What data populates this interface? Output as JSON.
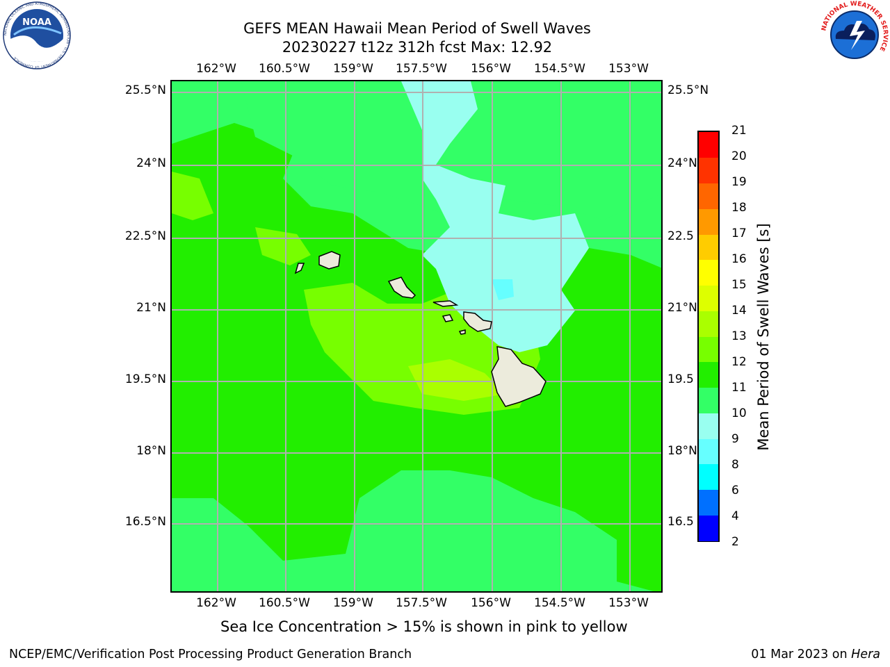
{
  "title_line1": "GEFS MEAN Hawaii Mean Period of Swell Waves",
  "title_line2": "20230227 t12z 312h fcst   Max: 12.92",
  "lon_labels": [
    "162°W",
    "160.5°W",
    "159°W",
    "157.5°W",
    "156°W",
    "154.5°W",
    "153°W"
  ],
  "lat_labels": [
    "25.5°N",
    "24°N",
    "22.5°N",
    "21°N",
    "19.5°N",
    "18°N",
    "16.5°N"
  ],
  "lat_labels_right": [
    "25.5°N",
    "24°N",
    "22.5",
    "21°N",
    "19.5",
    "18°N",
    "16.5"
  ],
  "colorbar": {
    "title": "Mean Period of Swell Waves [s]",
    "labels": [
      "2",
      "4",
      "6",
      "8",
      "9",
      "10",
      "11",
      "12",
      "13",
      "14",
      "15",
      "16",
      "17",
      "18",
      "19",
      "20",
      "21"
    ],
    "colors": [
      "#0000ff",
      "#0070ff",
      "#00ffff",
      "#66ffff",
      "#99fff0",
      "#33ff66",
      "#22ee00",
      "#77ff00",
      "#aaff00",
      "#ddff00",
      "#ffff00",
      "#ffcc00",
      "#ff9900",
      "#ff6600",
      "#ff3300",
      "#ff0000"
    ]
  },
  "map_colors": {
    "ocean_base": "#33ff66",
    "period_11": "#22ee00",
    "period_12": "#77ff00",
    "period_13": "#aaff00",
    "period_9": "#99fff0",
    "period_8": "#66ffff",
    "land": "#ecebdc",
    "grid": "#b0b0b0"
  },
  "sea_ice_note": "Sea Ice Concentration > 15% is shown in pink to yellow",
  "footer_left": "NCEP/EMC/Verification Post Processing Product Generation Branch",
  "footer_right_date": "01 Mar 2023 on ",
  "footer_right_host": "Hera",
  "logo_left": {
    "text": "NOAA",
    "ring_text": "NATIONAL OCEANIC AND ATMOSPHERIC ADMINISTRATION · U.S. DEPARTMENT OF COMMERCE"
  },
  "logo_right": {
    "ring_text": "NATIONAL WEATHER SERVICE"
  }
}
